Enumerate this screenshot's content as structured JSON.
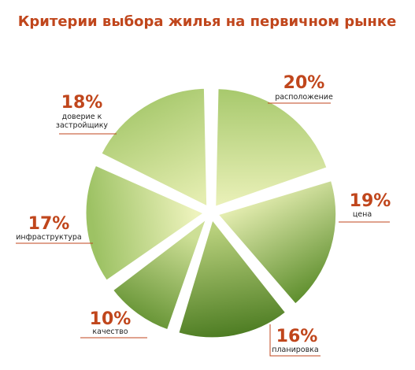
{
  "chart_data": {
    "type": "pie",
    "title": "Критерии выбора жилья на первичном рынке",
    "slices": [
      {
        "label": "расположение",
        "value": 20,
        "value_label": "20%"
      },
      {
        "label": "цена",
        "value": 19,
        "value_label": "19%"
      },
      {
        "label": "планировка",
        "value": 16,
        "value_label": "16%"
      },
      {
        "label": "качество",
        "value": 10,
        "value_label": "10%"
      },
      {
        "label": "инфраструктура",
        "value": 17,
        "value_label": "17%"
      },
      {
        "label": [
          "доверие к",
          "застройщику"
        ],
        "value": 18,
        "value_label": "18%"
      }
    ],
    "exploded": true,
    "start": "top",
    "direction": "clockwise"
  },
  "colors": {
    "title": "#c0461c",
    "labels": "#c0461c",
    "slice_light": "#eef3bd",
    "slice_mid": "#a9c96f",
    "slice_dark": "#4a7a20"
  }
}
